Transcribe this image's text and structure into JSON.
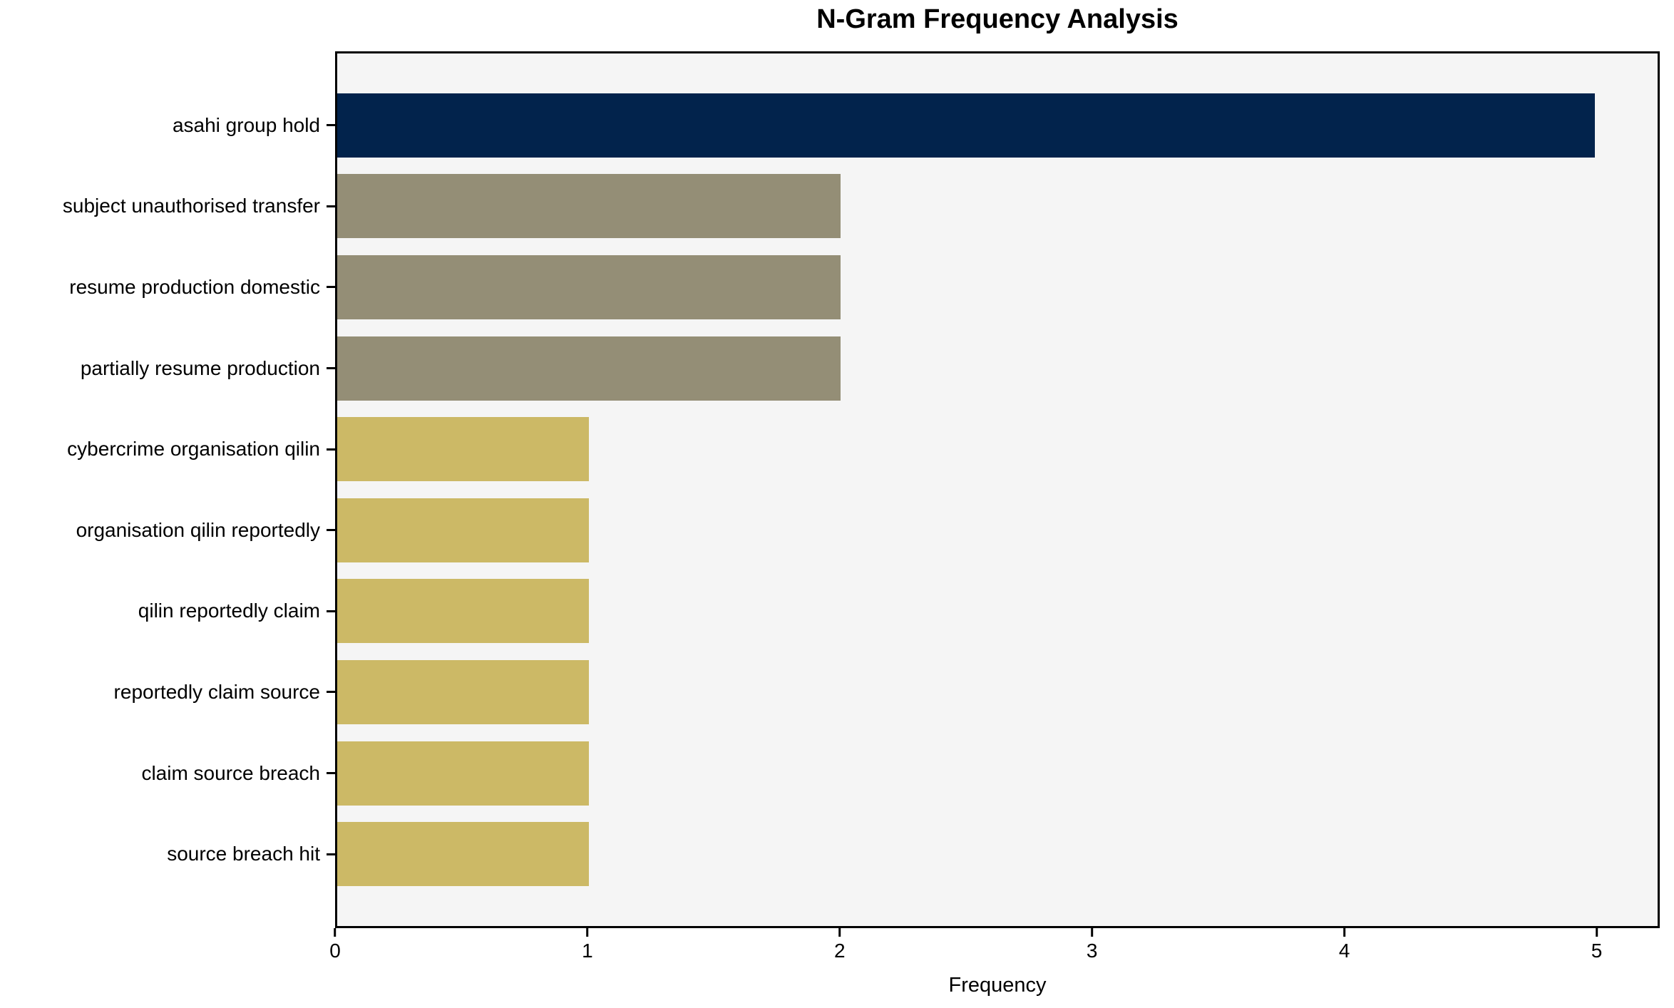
{
  "chart_data": {
    "type": "bar",
    "orientation": "horizontal",
    "title": "N-Gram Frequency Analysis",
    "xlabel": "Frequency",
    "ylabel": "",
    "categories": [
      "asahi group hold",
      "subject unauthorised transfer",
      "resume production domestic",
      "partially resume production",
      "cybercrime organisation qilin",
      "organisation qilin reportedly",
      "qilin reportedly claim",
      "reportedly claim source",
      "claim source breach",
      "source breach hit"
    ],
    "values": [
      5,
      2,
      2,
      2,
      1,
      1,
      1,
      1,
      1,
      1
    ],
    "bar_colors": [
      "#02234c",
      "#948e76",
      "#948e76",
      "#948e76",
      "#ccb966",
      "#ccb966",
      "#ccb966",
      "#ccb966",
      "#ccb966",
      "#ccb966"
    ],
    "xlim": [
      0,
      5.25
    ],
    "xticks": [
      "0",
      "1",
      "2",
      "3",
      "4",
      "5"
    ],
    "grid": false,
    "legend": null,
    "plot_background": "#f5f5f5",
    "figure_background": "#ffffff",
    "axis_color": "#000000",
    "text_color": "#000000"
  }
}
